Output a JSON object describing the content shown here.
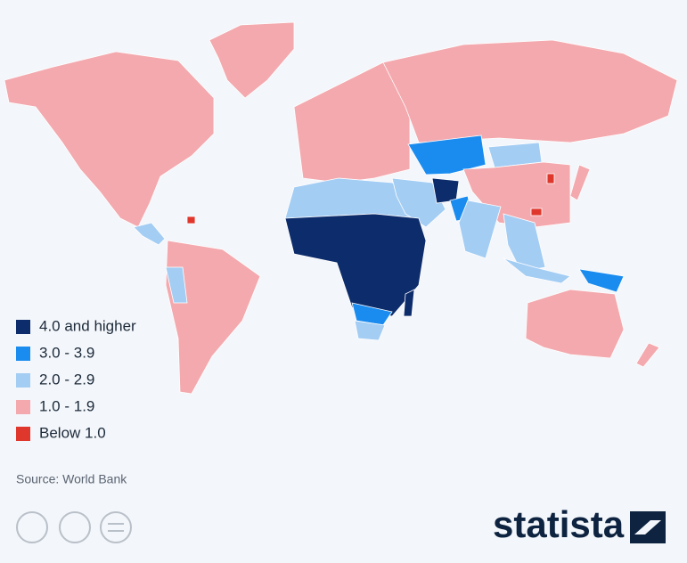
{
  "legend": [
    {
      "label": "4.0 and higher",
      "color": "#0d2c6b"
    },
    {
      "label": "3.0 - 3.9",
      "color": "#1a8cf0"
    },
    {
      "label": "2.0 - 2.9",
      "color": "#a4cdf4"
    },
    {
      "label": "1.0 - 1.9",
      "color": "#f3a9ae"
    },
    {
      "label": "Below 1.0",
      "color": "#e0372d"
    }
  ],
  "source": "Source: World Bank",
  "brand": "statista"
}
